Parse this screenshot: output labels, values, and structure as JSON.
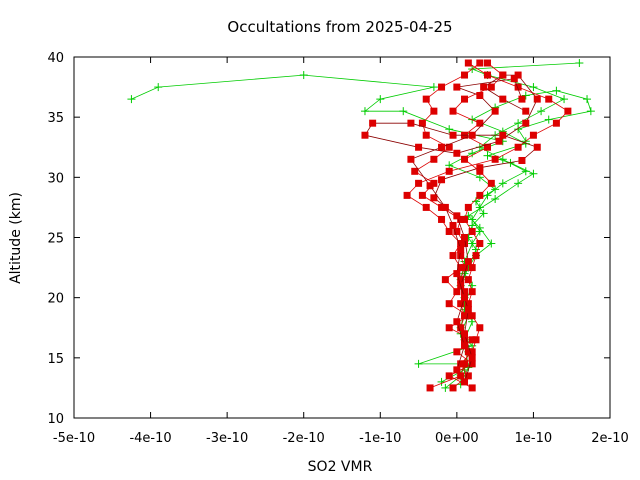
{
  "chart_data": {
    "type": "line",
    "title": "Occultations from 2025-04-25",
    "xlabel": "SO2 VMR",
    "ylabel": "Altitude (km)",
    "xlim": [
      -5e-10,
      2e-10
    ],
    "ylim": [
      10,
      40
    ],
    "x_ticks": [
      -5e-10,
      -4e-10,
      -3e-10,
      -2e-10,
      -1e-10,
      0,
      1e-10,
      2e-10
    ],
    "x_tick_labels": [
      "-5e-10",
      "-4e-10",
      "-3e-10",
      "-2e-10",
      "-1e-10",
      "0e+00",
      "1e-10",
      "2e-10"
    ],
    "y_ticks": [
      10,
      15,
      20,
      25,
      30,
      35,
      40
    ],
    "y_tick_labels": [
      "10",
      "15",
      "20",
      "25",
      "30",
      "35",
      "40"
    ],
    "grid": false,
    "legend": "none",
    "colors": {
      "green": "#00cc00",
      "red": "#dd0000",
      "darkred": "#8b0000"
    },
    "series": [
      {
        "color": "green",
        "marker": "plus",
        "points": [
          [
            -1.5e-11,
            12.5
          ],
          [
            5e-12,
            13.5
          ],
          [
            1e-11,
            14.5
          ],
          [
            -5e-11,
            14.5
          ],
          [
            2e-11,
            16
          ],
          [
            5e-12,
            17
          ],
          [
            1.5e-11,
            18.5
          ],
          [
            1e-11,
            20
          ],
          [
            5e-12,
            21.5
          ],
          [
            1e-11,
            23
          ],
          [
            2e-11,
            24.5
          ],
          [
            3e-11,
            25.5
          ],
          [
            2e-11,
            26.5
          ],
          [
            3e-11,
            27.5
          ],
          [
            4e-11,
            28.5
          ],
          [
            6e-11,
            29.5
          ],
          [
            9e-11,
            30.5
          ],
          [
            6e-11,
            31.5
          ],
          [
            3e-11,
            32.5
          ],
          [
            5e-11,
            33.5
          ],
          [
            8e-11,
            34.5
          ],
          [
            1.1e-10,
            35.5
          ],
          [
            1.4e-10,
            36.5
          ],
          [
            1e-10,
            37.5
          ],
          [
            4e-11,
            38.5
          ],
          [
            2e-11,
            39.0
          ],
          [
            1.6e-10,
            39.5
          ]
        ]
      },
      {
        "color": "green",
        "marker": "plus",
        "points": [
          [
            -2e-11,
            13
          ],
          [
            1e-11,
            14
          ],
          [
            1.5e-11,
            15.5
          ],
          [
            5e-12,
            17.5
          ],
          [
            1e-11,
            19
          ],
          [
            5e-12,
            21
          ],
          [
            1.5e-11,
            22.5
          ],
          [
            2.5e-11,
            24
          ],
          [
            1.5e-11,
            25
          ],
          [
            2e-11,
            26
          ],
          [
            3.5e-11,
            27
          ],
          [
            2.5e-11,
            28
          ],
          [
            5e-11,
            29
          ],
          [
            3e-11,
            30
          ],
          [
            -1e-11,
            31
          ],
          [
            2e-11,
            32
          ],
          [
            6e-11,
            33
          ],
          [
            -1e-11,
            34
          ],
          [
            -7e-11,
            35.5
          ],
          [
            -1.2e-10,
            35.5
          ],
          [
            -1e-10,
            36.5
          ],
          [
            -3e-11,
            37.5
          ],
          [
            -2e-10,
            38.5
          ],
          [
            -3.9e-10,
            37.5
          ],
          [
            -4.25e-10,
            36.5
          ]
        ]
      },
      {
        "color": "green",
        "marker": "plus",
        "points": [
          [
            5e-12,
            12.8
          ],
          [
            1.5e-11,
            14.2
          ],
          [
            1e-11,
            16.5
          ],
          [
            2e-11,
            18
          ],
          [
            1e-11,
            19.5
          ],
          [
            2e-11,
            21
          ],
          [
            1e-11,
            22
          ],
          [
            2.5e-11,
            23.5
          ],
          [
            4.5e-11,
            24.5
          ],
          [
            3e-11,
            25.8
          ],
          [
            1.5e-11,
            26.8
          ],
          [
            5e-11,
            28.2
          ],
          [
            8e-11,
            29.5
          ],
          [
            1e-10,
            30.3
          ],
          [
            7e-11,
            31.2
          ],
          [
            4e-11,
            31.8
          ],
          [
            9e-11,
            32.8
          ],
          [
            6e-11,
            33.8
          ],
          [
            2e-11,
            34.8
          ],
          [
            5e-11,
            35.8
          ],
          [
            9e-11,
            36.8
          ],
          [
            1.3e-10,
            37.2
          ],
          [
            1.7e-10,
            36.5
          ],
          [
            1.75e-10,
            35.5
          ],
          [
            1.2e-10,
            34.8
          ],
          [
            8e-11,
            34.0
          ],
          [
            9e-11,
            33.0
          ]
        ]
      },
      {
        "color": "red",
        "marker": "square",
        "points": [
          [
            -3.5e-11,
            12.5
          ],
          [
            5e-12,
            13.5
          ],
          [
            1e-11,
            14.5
          ],
          [
            1.5e-11,
            15.5
          ],
          [
            1e-11,
            16.5
          ],
          [
            5e-12,
            17.5
          ],
          [
            1e-11,
            18.5
          ],
          [
            5e-12,
            19.5
          ],
          [
            1e-11,
            20.5
          ],
          [
            5e-12,
            21.5
          ],
          [
            1e-11,
            22.5
          ],
          [
            5e-12,
            23.5
          ],
          [
            1e-11,
            24.5
          ],
          [
            0.0,
            25.5
          ],
          [
            5e-12,
            26.5
          ],
          [
            -2e-11,
            27.5
          ],
          [
            -4.5e-11,
            28.5
          ],
          [
            -3e-11,
            29.5
          ],
          [
            -5.5e-11,
            30.5
          ],
          [
            -3e-11,
            31.5
          ],
          [
            -1e-11,
            32.5
          ],
          [
            -4e-11,
            33.5
          ],
          [
            -4.5e-11,
            34.5
          ],
          [
            -3e-11,
            35.5
          ],
          [
            -4e-11,
            36.5
          ],
          [
            -2e-11,
            37.5
          ],
          [
            1e-11,
            38.5
          ],
          [
            3e-11,
            39.5
          ]
        ]
      },
      {
        "color": "red",
        "marker": "square",
        "points": [
          [
            -5e-12,
            12.5
          ],
          [
            1.5e-11,
            13.5
          ],
          [
            5e-12,
            14.5
          ],
          [
            2e-11,
            15.5
          ],
          [
            2.5e-11,
            16.5
          ],
          [
            3e-11,
            17.5
          ],
          [
            2e-11,
            18.5
          ],
          [
            1.5e-11,
            19.5
          ],
          [
            2e-11,
            20.5
          ],
          [
            1.5e-11,
            21.5
          ],
          [
            2e-11,
            22.5
          ],
          [
            2.5e-11,
            23.5
          ],
          [
            3e-11,
            24.5
          ],
          [
            2e-11,
            25.5
          ],
          [
            1e-11,
            26.5
          ],
          [
            1.5e-11,
            27.5
          ],
          [
            3e-11,
            28.5
          ],
          [
            4.5e-11,
            29.5
          ],
          [
            3e-11,
            30.5
          ],
          [
            1e-11,
            31.5
          ],
          [
            4e-11,
            32.5
          ],
          [
            1e-11,
            33.5
          ],
          [
            3e-11,
            34.5
          ],
          [
            -5e-12,
            35.5
          ],
          [
            1e-11,
            36.5
          ],
          [
            4.5e-11,
            37.5
          ],
          [
            6e-11,
            38.5
          ],
          [
            4e-11,
            39.5
          ]
        ]
      },
      {
        "color": "red",
        "marker": "square",
        "points": [
          [
            2e-11,
            12.5
          ],
          [
            -1e-11,
            13.5
          ],
          [
            2e-11,
            14.5
          ],
          [
            0.0,
            15.5
          ],
          [
            2e-11,
            16.5
          ],
          [
            -1e-11,
            17.5
          ],
          [
            1.5e-11,
            18.5
          ],
          [
            -1e-11,
            19.5
          ],
          [
            0.0,
            20.5
          ],
          [
            -1.5e-11,
            21.5
          ],
          [
            5e-12,
            22.5
          ],
          [
            -5e-12,
            23.5
          ],
          [
            5e-12,
            24.5
          ],
          [
            -1e-11,
            25.5
          ],
          [
            -2e-11,
            26.5
          ],
          [
            -4e-11,
            27.5
          ],
          [
            -6.5e-11,
            28.5
          ],
          [
            -5e-11,
            29.5
          ],
          [
            -1e-11,
            30.5
          ],
          [
            5e-11,
            31.5
          ],
          [
            8e-11,
            32.5
          ],
          [
            1e-10,
            33.5
          ],
          [
            1.3e-10,
            34.5
          ],
          [
            1.45e-10,
            35.5
          ],
          [
            1.2e-10,
            36.5
          ],
          [
            8e-11,
            37.5
          ],
          [
            4e-11,
            38.5
          ],
          [
            1.5e-11,
            39.5
          ]
        ]
      },
      {
        "color": "darkred",
        "marker": "square",
        "points": [
          [
            1e-11,
            13
          ],
          [
            2e-11,
            15
          ],
          [
            1e-11,
            17
          ],
          [
            1.5e-11,
            19
          ],
          [
            5e-12,
            21
          ],
          [
            1.5e-11,
            23
          ],
          [
            1e-11,
            25
          ],
          [
            0.0,
            26.8
          ],
          [
            -3e-11,
            28.3
          ],
          [
            -2e-11,
            29.8
          ],
          [
            3e-11,
            30.8
          ],
          [
            8.5e-11,
            31.4
          ],
          [
            1.05e-10,
            32.5
          ],
          [
            6e-11,
            33.5
          ],
          [
            -5e-12,
            33.5
          ],
          [
            -6e-11,
            34.5
          ],
          [
            -1.1e-10,
            34.5
          ],
          [
            -1.2e-10,
            33.5
          ],
          [
            -5e-11,
            32.5
          ],
          [
            0.0,
            32.0
          ],
          [
            5.5e-11,
            33.0
          ],
          [
            9e-11,
            34.5
          ],
          [
            1.05e-10,
            36.5
          ],
          [
            8e-11,
            38.5
          ],
          [
            6e-11,
            38.5
          ],
          [
            3.5e-11,
            37.5
          ],
          [
            6e-11,
            36.5
          ],
          [
            9e-11,
            35.5
          ]
        ]
      },
      {
        "color": "darkred",
        "marker": "square",
        "points": [
          [
            0.0,
            14
          ],
          [
            1e-11,
            16
          ],
          [
            0.0,
            18
          ],
          [
            1e-11,
            20
          ],
          [
            0.0,
            22
          ],
          [
            5e-12,
            24
          ],
          [
            -5e-12,
            26
          ],
          [
            -1.5e-11,
            27.5
          ],
          [
            -3.5e-11,
            29.3
          ],
          [
            -6e-11,
            31.5
          ],
          [
            -2e-11,
            32.5
          ],
          [
            2e-11,
            33.5
          ],
          [
            5e-11,
            35.5
          ],
          [
            3e-11,
            36.8
          ],
          [
            0.0,
            37.5
          ],
          [
            7.5e-11,
            38.2
          ],
          [
            8.5e-11,
            36.5
          ]
        ]
      }
    ]
  }
}
